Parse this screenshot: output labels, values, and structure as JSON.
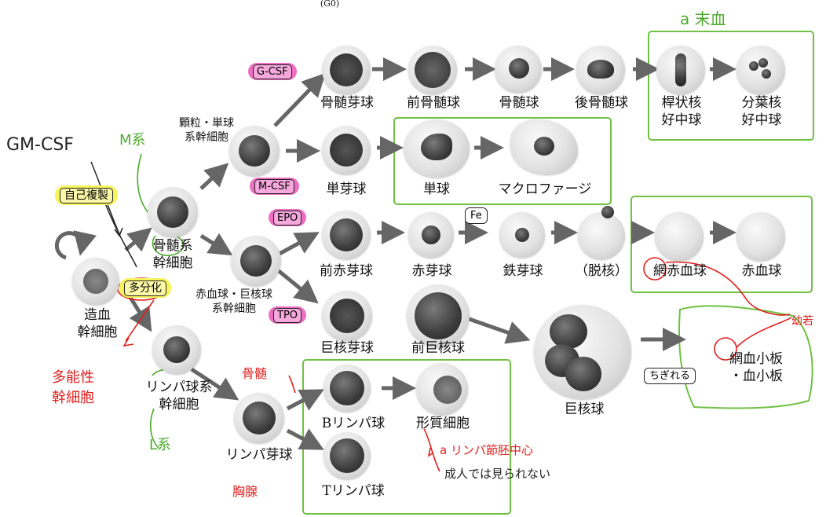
{
  "header": {
    "cropped_text": "(G0)"
  },
  "stem": {
    "hsc": "造血\n幹細胞",
    "myeloid": "骨髄系\n幹細胞",
    "lymphoid": "リンパ球系\n幹細胞",
    "granulo_mono": "顆粒・単球\n系幹細胞",
    "erythro_mega": "赤血球・巨核球\n系幹細胞"
  },
  "granulocyte_line": [
    "骨髄芽球",
    "前骨髄球",
    "骨髄球",
    "後骨髄球",
    "桿状核\n好中球",
    "分葉核\n好中球"
  ],
  "monocyte_line": [
    "単芽球",
    "単球",
    "マクロファージ"
  ],
  "erythro_line": [
    "前赤芽球",
    "赤芽球",
    "鉄芽球",
    "（脱核）",
    "網赤血球",
    "赤血球"
  ],
  "mega_line": [
    "巨核芽球",
    "前巨核球",
    "巨核球",
    "網血小板\n・血小板"
  ],
  "lymph_line": [
    "リンパ芽球",
    "Bリンパ球",
    "形質細胞",
    "Tリンパ球"
  ],
  "factors": {
    "gcsf": "G-CSF",
    "mcsf": "M-CSF",
    "epo": "EPO",
    "tpo": "TPO",
    "fe": "Fe",
    "tear": "ちぎれる"
  },
  "boxes": {
    "self_renewal": "自己複製",
    "multi_diff": "多分化"
  },
  "notes": {
    "gmcsf": "GM-CSF",
    "m_lineage": "M系",
    "l_lineage": "L系",
    "pluripotent": "多能性\n幹細胞",
    "marrow": "骨髄",
    "thymus": "胸腺",
    "peripheral": "a 末血",
    "lymph_center": "a リンパ節胚中心",
    "adult_note": "成人では見られない",
    "immature": "幼若"
  },
  "colors": {
    "pink": "#ee6fc2",
    "yellow": "#f7f35a",
    "green_box": "#6fc043",
    "red_pen": "#e0201e"
  }
}
